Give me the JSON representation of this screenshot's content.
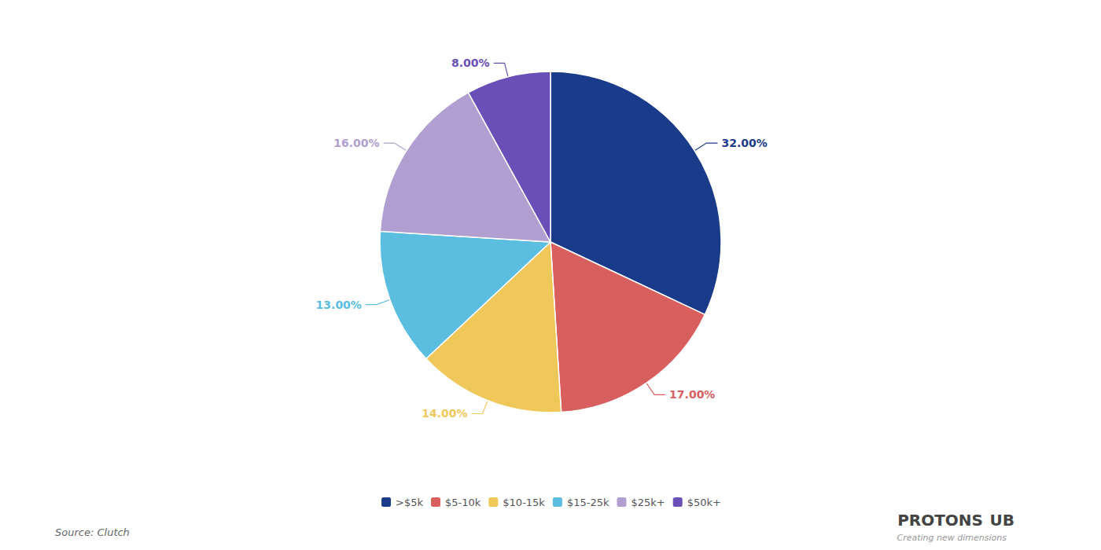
{
  "chart_data": {
    "type": "pie",
    "categories": [
      ">$5k",
      "$5-10k",
      "$10-15k",
      "$15-25k",
      "$25k+",
      "$50k+"
    ],
    "values": [
      32,
      17,
      14,
      13,
      16,
      8
    ],
    "value_labels": [
      "32.00%",
      "17.00%",
      "14.00%",
      "13.00%",
      "16.00%",
      "8.00%"
    ],
    "colors": [
      "#1a3a8a",
      "#d95f5f",
      "#f0c85a",
      "#5bbde0",
      "#b09fd0",
      "#6a4fb8"
    ],
    "data_labels": true,
    "legend": "bottom",
    "annotations": [
      "Source: Clutch",
      "PROTONS",
      "UB",
      "Creating new dimensions"
    ]
  }
}
